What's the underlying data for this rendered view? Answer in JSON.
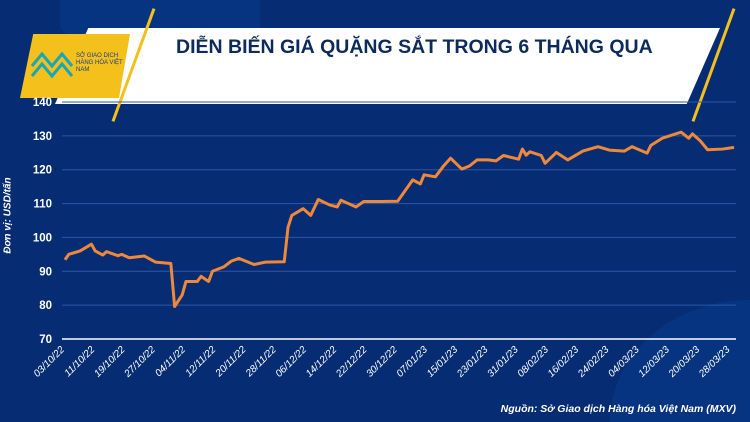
{
  "header": {
    "title": "DIỄN BIẾN GIÁ QUẶNG SẮT TRONG 6 THÁNG QUA",
    "logo_text": "SỞ GIAO DỊCH HÀNG HÓA VIỆT NAM"
  },
  "source": "Nguồn: Sở Giao dịch Hàng hóa Việt Nam (MXV)",
  "colors": {
    "background": "#062d74",
    "line": "#f0883a",
    "accent": "#f3c01c"
  },
  "chart_data": {
    "type": "line",
    "title": "DIỄN BIẾN GIÁ QUẶNG SẮT TRONG 6 THÁNG QUA",
    "ylabel": "Đơn vị: USD/tấn",
    "xlabel": "",
    "ylim": [
      70,
      140
    ],
    "yticks": [
      70,
      80,
      90,
      100,
      110,
      120,
      130,
      140
    ],
    "grid": true,
    "xticks": [
      "03/10/22",
      "11/10/22",
      "19/10/22",
      "27/10/22",
      "04/11/22",
      "12/11/22",
      "20/11/22",
      "28/11/22",
      "06/12/22",
      "14/12/22",
      "22/12/22",
      "30/12/22",
      "07/01/23",
      "15/01/23",
      "23/01/23",
      "31/01/23",
      "08/02/23",
      "16/02/23",
      "24/02/23",
      "04/03/23",
      "12/03/23",
      "20/03/23",
      "28/03/23"
    ],
    "x": [
      "03/10/22",
      "04/10/22",
      "07/10/22",
      "10/10/22",
      "11/10/22",
      "13/10/22",
      "14/10/22",
      "17/10/22",
      "18/10/22",
      "20/10/22",
      "24/10/22",
      "27/10/22",
      "31/10/22",
      "01/11/22",
      "03/11/22",
      "04/11/22",
      "07/11/22",
      "08/11/22",
      "10/11/22",
      "11/11/22",
      "14/11/22",
      "16/11/22",
      "18/11/22",
      "22/11/22",
      "25/11/22",
      "30/11/22",
      "01/12/22",
      "02/12/22",
      "05/12/22",
      "07/12/22",
      "09/12/22",
      "12/12/22",
      "14/12/22",
      "15/12/22",
      "19/12/22",
      "21/12/22",
      "25/12/22",
      "30/12/22",
      "03/01/23",
      "05/01/23",
      "06/01/23",
      "09/01/23",
      "11/01/23",
      "13/01/23",
      "16/01/23",
      "18/01/23",
      "20/01/23",
      "23/01/23",
      "25/01/23",
      "27/01/23",
      "31/01/23",
      "01/02/23",
      "02/02/23",
      "03/02/23",
      "06/02/23",
      "07/02/23",
      "10/02/23",
      "13/02/23",
      "17/02/23",
      "21/02/23",
      "24/02/23",
      "28/02/23",
      "02/03/23",
      "06/03/23",
      "07/03/23",
      "10/03/23",
      "15/03/23",
      "17/03/23",
      "18/03/23",
      "20/03/23",
      "22/03/23",
      "26/03/23",
      "29/03/23"
    ],
    "values": [
      93.4,
      95,
      96,
      98,
      96,
      94.8,
      95.8,
      94.6,
      95,
      94,
      94.5,
      92.7,
      92.3,
      79.6,
      83,
      87,
      87,
      88.5,
      87,
      90,
      91.3,
      93,
      93.8,
      92,
      92.7,
      92.8,
      103,
      106.5,
      108.5,
      106.5,
      111.2,
      109.6,
      109,
      111,
      109,
      110.6,
      110.6,
      110.7,
      117,
      115.8,
      118.5,
      117.9,
      120.9,
      123.4,
      120.2,
      121.1,
      122.9,
      122.9,
      122.6,
      124.2,
      123.1,
      126.1,
      124.3,
      125.3,
      124.2,
      121.9,
      125.1,
      122.9,
      125.5,
      126.8,
      125.8,
      125.5,
      126.8,
      124.9,
      127.2,
      129.3,
      131.1,
      129.3,
      130.6,
      128.6,
      125.9,
      126.1,
      126.6
    ]
  }
}
